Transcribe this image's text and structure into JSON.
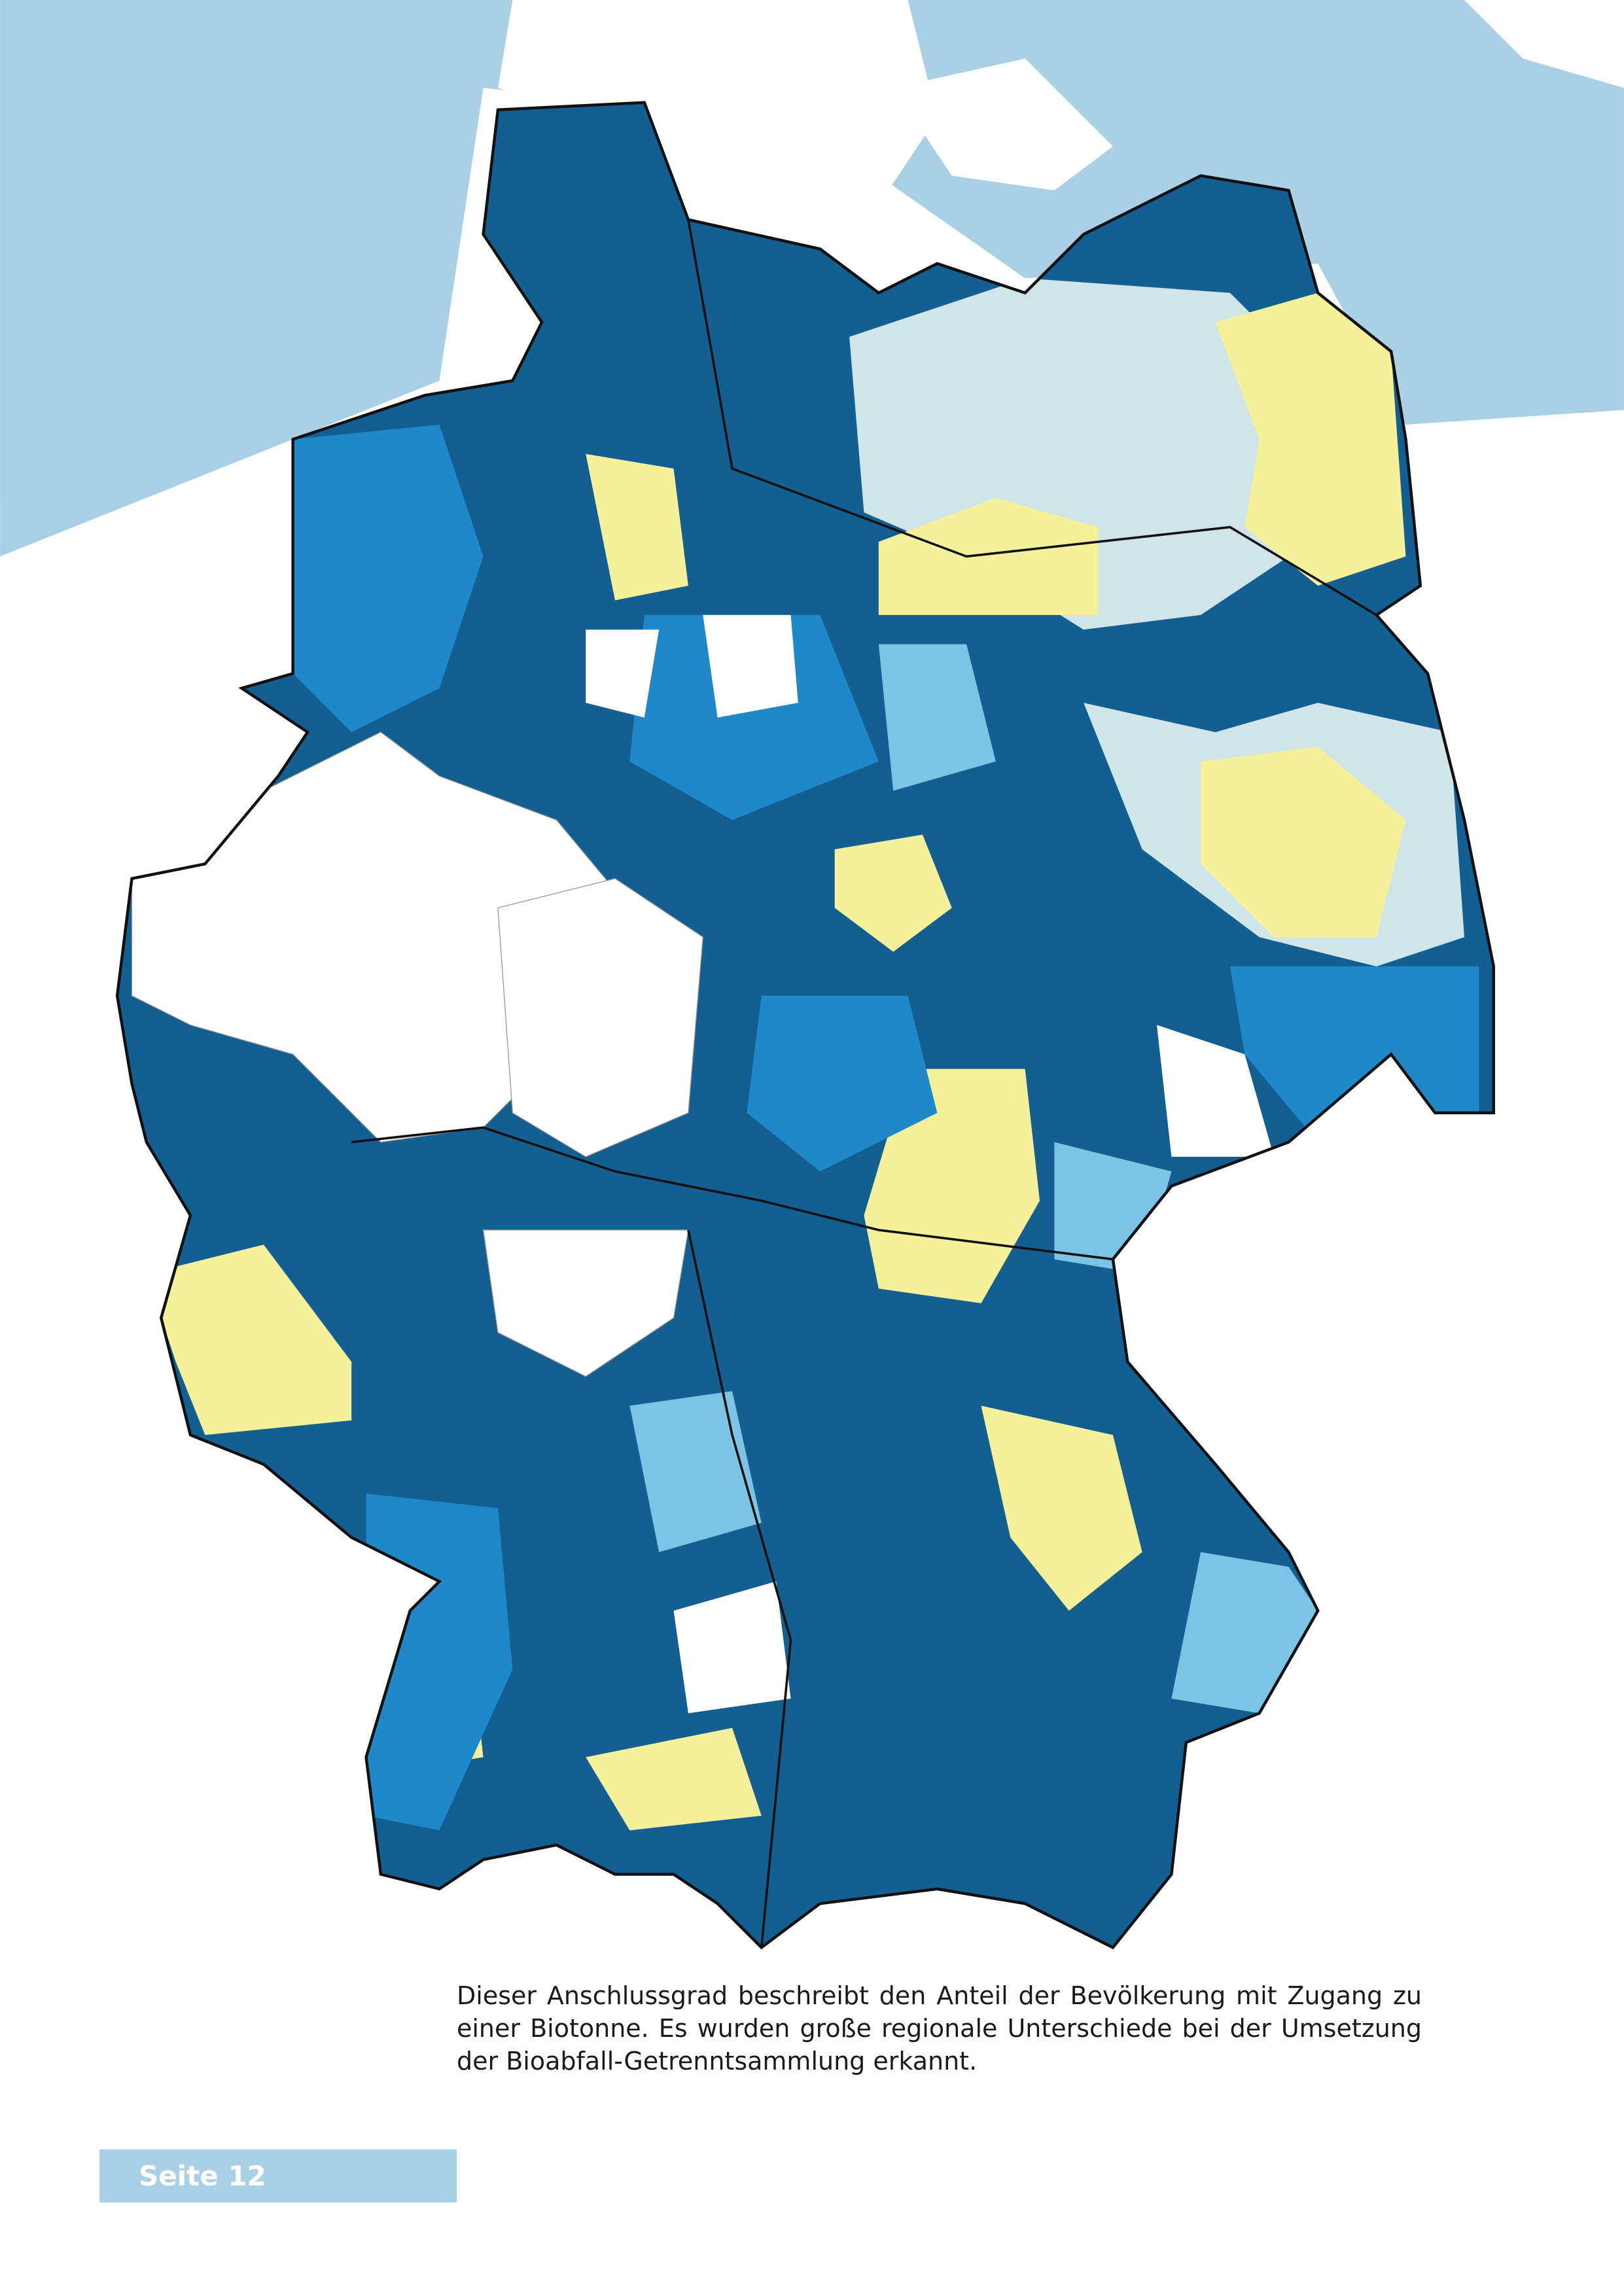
{
  "caption": "Dieser Anschlussgrad beschreibt den Anteil der Bevölkerung mit Zugang zu einer Biotonne. Es wurden große regionale Unterschiede bei der Umsetzung der Bioabfall-Getrenntsammlung erkannt.",
  "page_label": "Seite 12"
}
